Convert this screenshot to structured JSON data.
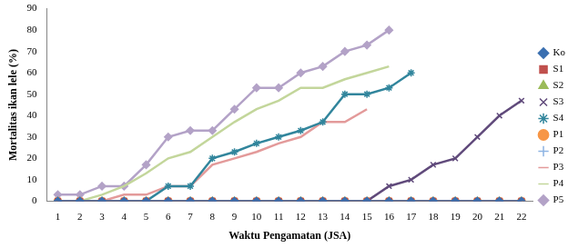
{
  "chart_data": {
    "type": "line",
    "x_label": "Waktu Pengamatan (JSA)",
    "y_label": "Mortalitas ikan lele (%)",
    "categories": [
      1,
      2,
      3,
      4,
      5,
      6,
      7,
      8,
      9,
      10,
      11,
      12,
      13,
      14,
      15,
      16,
      17,
      18,
      19,
      20,
      21,
      22
    ],
    "ylim": [
      0,
      90
    ],
    "yticks": [
      0,
      10,
      20,
      30,
      40,
      50,
      60,
      70,
      80,
      90
    ],
    "grid": false,
    "legend": "right",
    "series": [
      {
        "name": "Ko",
        "color": "#3a6fb0",
        "marker": "diamond",
        "values": [
          0,
          0,
          0,
          0,
          0,
          0,
          0,
          0,
          0,
          0,
          0,
          0,
          0,
          0,
          0,
          0,
          0,
          0,
          0,
          0,
          0,
          0
        ]
      },
      {
        "name": "S1",
        "color": "#c0504d",
        "marker": "square",
        "values": [
          0,
          0,
          0,
          0,
          0,
          0,
          0,
          0,
          0,
          0,
          0,
          0,
          0,
          0,
          0,
          0,
          0,
          0,
          0,
          0,
          0,
          0
        ]
      },
      {
        "name": "S2",
        "color": "#9bbb59",
        "marker": "triangle",
        "values": [
          0,
          0,
          0,
          0,
          0,
          0,
          0,
          0,
          0,
          0,
          0,
          0,
          0,
          0,
          0,
          0,
          0,
          0,
          0,
          0,
          0,
          0
        ]
      },
      {
        "name": "S3",
        "color": "#604a7b",
        "marker": "x",
        "values": [
          0,
          0,
          0,
          0,
          0,
          0,
          0,
          0,
          0,
          0,
          0,
          0,
          0,
          0,
          0,
          7,
          10,
          17,
          20,
          30,
          40,
          47
        ]
      },
      {
        "name": "S4",
        "color": "#31859c",
        "marker": "asterisk",
        "values": [
          0,
          0,
          0,
          0,
          0,
          7,
          7,
          20,
          23,
          27,
          30,
          33,
          37,
          50,
          50,
          53,
          60,
          null,
          null,
          null,
          null,
          null
        ]
      },
      {
        "name": "P1",
        "color": "#f79646",
        "marker": "circle",
        "values": [
          0,
          0,
          0,
          0,
          0,
          0,
          0,
          0,
          0,
          0,
          0,
          0,
          0,
          0,
          0,
          0,
          0,
          0,
          0,
          0,
          0,
          0
        ]
      },
      {
        "name": "P2",
        "color": "#8eb4e3",
        "marker": "plus",
        "values": [
          0,
          0,
          0,
          0,
          0,
          0,
          0,
          0,
          0,
          0,
          0,
          0,
          0,
          0,
          0,
          0,
          0,
          0,
          0,
          0,
          0,
          0
        ]
      },
      {
        "name": "P3",
        "color": "#e39a9a",
        "marker": "none",
        "values": [
          0,
          0,
          0,
          3,
          3,
          7,
          7,
          17,
          20,
          23,
          27,
          30,
          37,
          37,
          43,
          null,
          null,
          null,
          null,
          null,
          null,
          null
        ]
      },
      {
        "name": "P4",
        "color": "#c3d69b",
        "marker": "none",
        "values": [
          0,
          0,
          3,
          7,
          13,
          20,
          23,
          30,
          37,
          43,
          47,
          53,
          53,
          57,
          60,
          63,
          null,
          null,
          null,
          null,
          null,
          null
        ]
      },
      {
        "name": "P5",
        "color": "#b3a2c7",
        "marker": "diamond",
        "values": [
          3,
          3,
          7,
          7,
          17,
          30,
          33,
          33,
          43,
          53,
          53,
          60,
          63,
          70,
          73,
          80,
          null,
          null,
          null,
          null,
          null,
          null
        ]
      }
    ]
  }
}
